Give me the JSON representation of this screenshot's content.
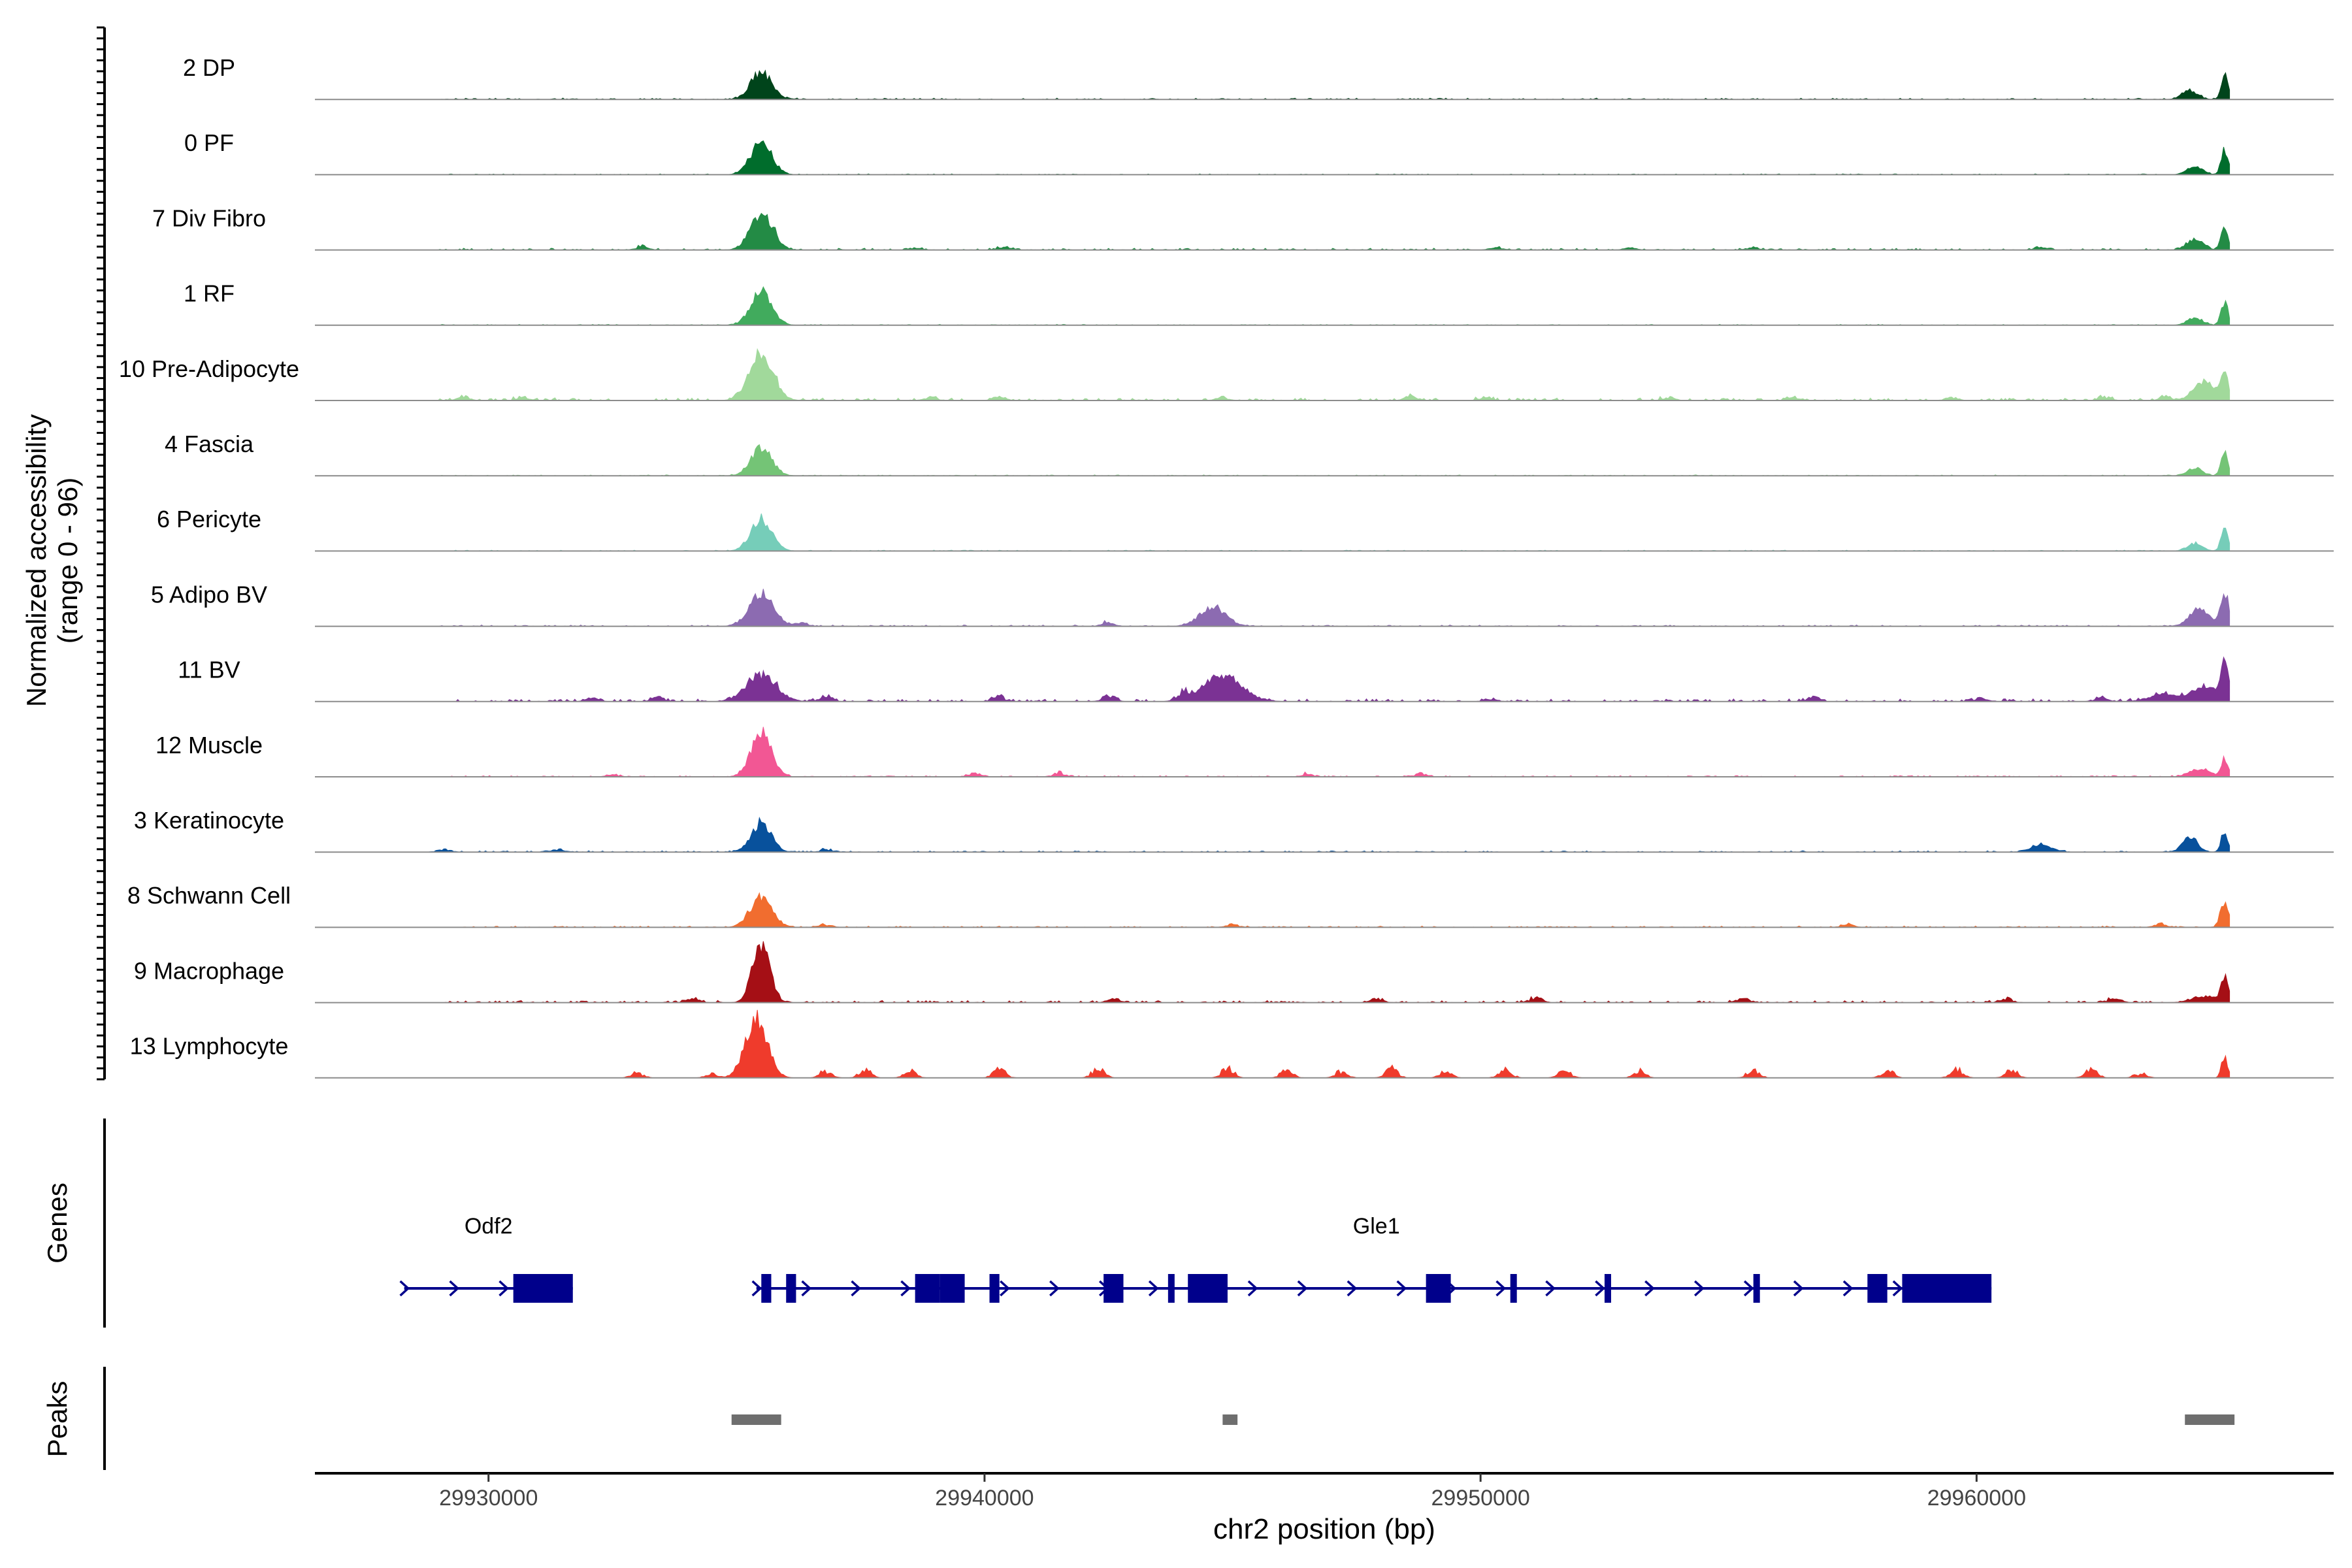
{
  "chart_data": {
    "type": "area",
    "title": "",
    "ylabel_line1": "Normalized accessibility",
    "ylabel_line2": "(range 0 - 96)",
    "xlabel": "chr2 position (bp)",
    "xlim": [
      29926500,
      29967200
    ],
    "ylim": [
      0,
      96
    ],
    "x_ticks": [
      {
        "value": 29930000,
        "label": "29930000"
      },
      {
        "value": 29940000,
        "label": "29940000"
      },
      {
        "value": 29950000,
        "label": "29950000"
      },
      {
        "value": 29960000,
        "label": "29960000"
      }
    ],
    "grid": false,
    "tracks": [
      {
        "name": "2 DP",
        "color": "#00441b",
        "peaks": [
          [
            29935500,
            36,
            210
          ],
          [
            29964300,
            12,
            150
          ],
          [
            29965000,
            30,
            70
          ]
        ],
        "noise": 1.5,
        "bumps": []
      },
      {
        "name": "0 PF",
        "color": "#006d2c",
        "peaks": [
          [
            29935500,
            42,
            210
          ],
          [
            29964400,
            12,
            150
          ],
          [
            29965000,
            34,
            70
          ]
        ],
        "noise": 1,
        "bumps": []
      },
      {
        "name": "7 Div Fibro",
        "color": "#238b45",
        "peaks": [
          [
            29935500,
            46,
            220
          ],
          [
            29964400,
            14,
            160
          ],
          [
            29965000,
            30,
            70
          ]
        ],
        "noise": 2,
        "bumps": [
          [
            29933100,
            5
          ],
          [
            29935700,
            4
          ],
          [
            29938600,
            3
          ],
          [
            29940400,
            5
          ],
          [
            29950300,
            3
          ],
          [
            29953000,
            3
          ],
          [
            29955500,
            3
          ],
          [
            29961300,
            4
          ]
        ]
      },
      {
        "name": "1 RF",
        "color": "#41ab5d",
        "peaks": [
          [
            29935500,
            44,
            210
          ],
          [
            29964400,
            10,
            150
          ],
          [
            29965000,
            30,
            70
          ]
        ],
        "noise": 1,
        "bumps": []
      },
      {
        "name": "10 Pre-Adipocyte",
        "color": "#a1d99b",
        "peaks": [
          [
            29935500,
            60,
            240
          ],
          [
            29964600,
            24,
            220
          ],
          [
            29965000,
            36,
            70
          ]
        ],
        "noise": 3,
        "bumps": [
          [
            29929500,
            5
          ],
          [
            29930700,
            4
          ],
          [
            29938900,
            4
          ],
          [
            29940300,
            5
          ],
          [
            29944800,
            4
          ],
          [
            29948600,
            6
          ],
          [
            29950100,
            4
          ],
          [
            29953800,
            4
          ],
          [
            29956300,
            5
          ],
          [
            29959500,
            4
          ],
          [
            29962600,
            4
          ],
          [
            29963800,
            5
          ]
        ]
      },
      {
        "name": "4 Fascia",
        "color": "#74c476",
        "peaks": [
          [
            29935500,
            36,
            210
          ],
          [
            29964400,
            10,
            150
          ],
          [
            29965000,
            30,
            70
          ]
        ],
        "noise": 1,
        "bumps": []
      },
      {
        "name": "6 Pericyte",
        "color": "#76cdb9",
        "peaks": [
          [
            29935500,
            42,
            210
          ],
          [
            29964400,
            10,
            150
          ],
          [
            29965000,
            30,
            70
          ]
        ],
        "noise": 1,
        "bumps": []
      },
      {
        "name": "5 Adipo BV",
        "color": "#8c6bb1",
        "peaks": [
          [
            29935500,
            42,
            240
          ],
          [
            29944600,
            26,
            260
          ],
          [
            29964500,
            22,
            200
          ],
          [
            29965000,
            44,
            80
          ]
        ],
        "noise": 1.5,
        "bumps": [
          [
            29936300,
            4
          ],
          [
            29942500,
            5
          ]
        ]
      },
      {
        "name": "11 BV",
        "color": "#7b3294",
        "peaks": [
          [
            29935500,
            34,
            300
          ],
          [
            29944800,
            34,
            380
          ],
          [
            29963800,
            10,
            300
          ],
          [
            29964600,
            18,
            250
          ],
          [
            29965000,
            52,
            80
          ]
        ],
        "noise": 3,
        "bumps": [
          [
            29932100,
            5
          ],
          [
            29933400,
            5
          ],
          [
            29936800,
            7
          ],
          [
            29940300,
            6
          ],
          [
            29942500,
            8
          ],
          [
            29944000,
            7
          ],
          [
            29950200,
            4
          ],
          [
            29956700,
            6
          ],
          [
            29960100,
            5
          ],
          [
            29962500,
            5
          ]
        ]
      },
      {
        "name": "12 Muscle",
        "color": "#f25794",
        "peaks": [
          [
            29935500,
            58,
            200
          ],
          [
            29964500,
            10,
            200
          ],
          [
            29965000,
            24,
            70
          ]
        ],
        "noise": 1.5,
        "bumps": [
          [
            29932500,
            3
          ],
          [
            29939800,
            4
          ],
          [
            29941500,
            5
          ],
          [
            29946500,
            3
          ],
          [
            29948800,
            4
          ]
        ]
      },
      {
        "name": "3 Keratinocyte",
        "color": "#08519c",
        "peaks": [
          [
            29935500,
            38,
            200
          ],
          [
            29961300,
            10,
            200
          ],
          [
            29964300,
            18,
            150
          ],
          [
            29965000,
            26,
            70
          ]
        ],
        "noise": 1.5,
        "bumps": [
          [
            29929100,
            4
          ],
          [
            29931400,
            3
          ],
          [
            29936800,
            3
          ]
        ]
      },
      {
        "name": "8 Schwann Cell",
        "color": "#f16d2f",
        "peaks": [
          [
            29935500,
            40,
            220
          ],
          [
            29965000,
            34,
            80
          ]
        ],
        "noise": 1.5,
        "bumps": [
          [
            29936800,
            4
          ],
          [
            29945000,
            4
          ],
          [
            29957400,
            4
          ],
          [
            29963700,
            4
          ]
        ]
      },
      {
        "name": "9 Macrophage",
        "color": "#a50f15",
        "peaks": [
          [
            29935500,
            80,
            170
          ],
          [
            29964600,
            8,
            250
          ],
          [
            29965000,
            34,
            70
          ]
        ],
        "noise": 2.5,
        "bumps": [
          [
            29934100,
            6
          ],
          [
            29942600,
            5
          ],
          [
            29947900,
            5
          ],
          [
            29951100,
            6
          ],
          [
            29955300,
            5
          ],
          [
            29960600,
            5
          ],
          [
            29962800,
            5
          ]
        ]
      },
      {
        "name": "13 Lymphocyte",
        "color": "#ef3b2c",
        "peaks": [
          [
            29935400,
            80,
            220
          ],
          [
            29965000,
            28,
            60
          ]
        ],
        "noise": 0,
        "bumps": [
          [
            29933000,
            7
          ],
          [
            29934500,
            5
          ],
          [
            29936800,
            8
          ],
          [
            29937600,
            10
          ],
          [
            29938500,
            10
          ],
          [
            29940300,
            12
          ],
          [
            29942300,
            14
          ],
          [
            29944900,
            12
          ],
          [
            29946100,
            10
          ],
          [
            29947200,
            8
          ],
          [
            29948200,
            12
          ],
          [
            29949300,
            8
          ],
          [
            29950500,
            12
          ],
          [
            29951700,
            10
          ],
          [
            29953200,
            8
          ],
          [
            29955500,
            10
          ],
          [
            29958200,
            10
          ],
          [
            29959600,
            12
          ],
          [
            29960700,
            10
          ],
          [
            29962300,
            12
          ],
          [
            29963300,
            6
          ]
        ]
      }
    ],
    "genes_label": "Genes",
    "peaks_label": "Peaks",
    "genes": [
      {
        "name": "Odf2",
        "start": 29928300,
        "end": 29931700,
        "label_x": 29930000,
        "exons": [
          [
            29930500,
            29931700
          ]
        ]
      },
      {
        "name": "Gle1",
        "start": 29935400,
        "end": 29960300,
        "label_x": 29947900,
        "exons": [
          [
            29935500,
            29935700
          ],
          [
            29936000,
            29936200
          ],
          [
            29938600,
            29939100
          ],
          [
            29939100,
            29939600
          ],
          [
            29940100,
            29940300
          ],
          [
            29942400,
            29942800
          ],
          [
            29943700,
            29943800
          ],
          [
            29944100,
            29944900
          ],
          [
            29948900,
            29949400
          ],
          [
            29950600,
            29950700
          ],
          [
            29952500,
            29952600
          ],
          [
            29955500,
            29955600
          ],
          [
            29957800,
            29958200
          ],
          [
            29958500,
            29960300
          ]
        ]
      }
    ],
    "peak_regions": [
      [
        29934900,
        29935900
      ],
      [
        29944800,
        29945100
      ],
      [
        29964200,
        29965200
      ]
    ]
  }
}
